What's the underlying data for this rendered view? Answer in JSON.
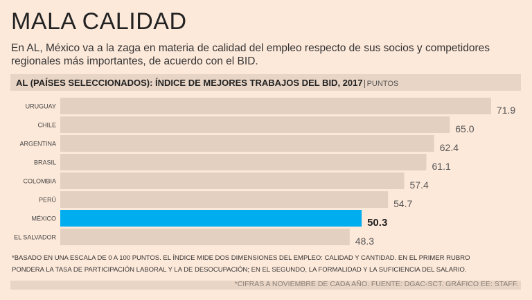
{
  "title": "MALA CALIDAD",
  "subtitle": "En AL, México va a la zaga en materia de calidad del empleo respecto de sus socios y competidores regionales más importantes, de acuerdo con el BID.",
  "chart_data": {
    "type": "bar",
    "orientation": "horizontal",
    "title": "AL (PAÍSES SELECCIONADOS): ÍNDICE DE MEJORES TRABAJOS DEL BID, 2017",
    "unit": "PUNTOS",
    "categories": [
      "URUGUAY",
      "CHILE",
      "ARGENTINA",
      "BRASIL",
      "COLOMBIA",
      "PERÚ",
      "MÉXICO",
      "EL SALVADOR"
    ],
    "values": [
      71.9,
      65.0,
      62.4,
      61.1,
      57.4,
      54.7,
      50.3,
      48.3
    ],
    "labels": [
      "71.9",
      "65.0",
      "62.4",
      "61.1",
      "57.4",
      "54.7",
      "50.3",
      "48.3"
    ],
    "highlight": "MÉXICO",
    "colors": {
      "bar": "#e4d0c1",
      "highlight": "#00aeef"
    },
    "xlim": [
      0,
      100
    ]
  },
  "note": "*BASADO EN UNA ESCALA DE 0 A 100 PUNTOS. EL ÍNDICE MIDE DOS DIMENSIONES DEL EMPLEO: CALIDAD Y CANTIDAD. EN EL PRIMER RUBRO PONDERA LA TASA DE PARTICIPACIÓN LABORAL Y LA DE DESOCUPACIÓN; EN EL SEGUNDO, LA FORMALIDAD Y LA SUFICIENCIA DEL SALARIO.",
  "footer": "*CIFRAS A NOVIEMBRE DE CADA AÑO.  FUENTE: DGAC-SCT.  GRÁFICO EE: STAFF."
}
